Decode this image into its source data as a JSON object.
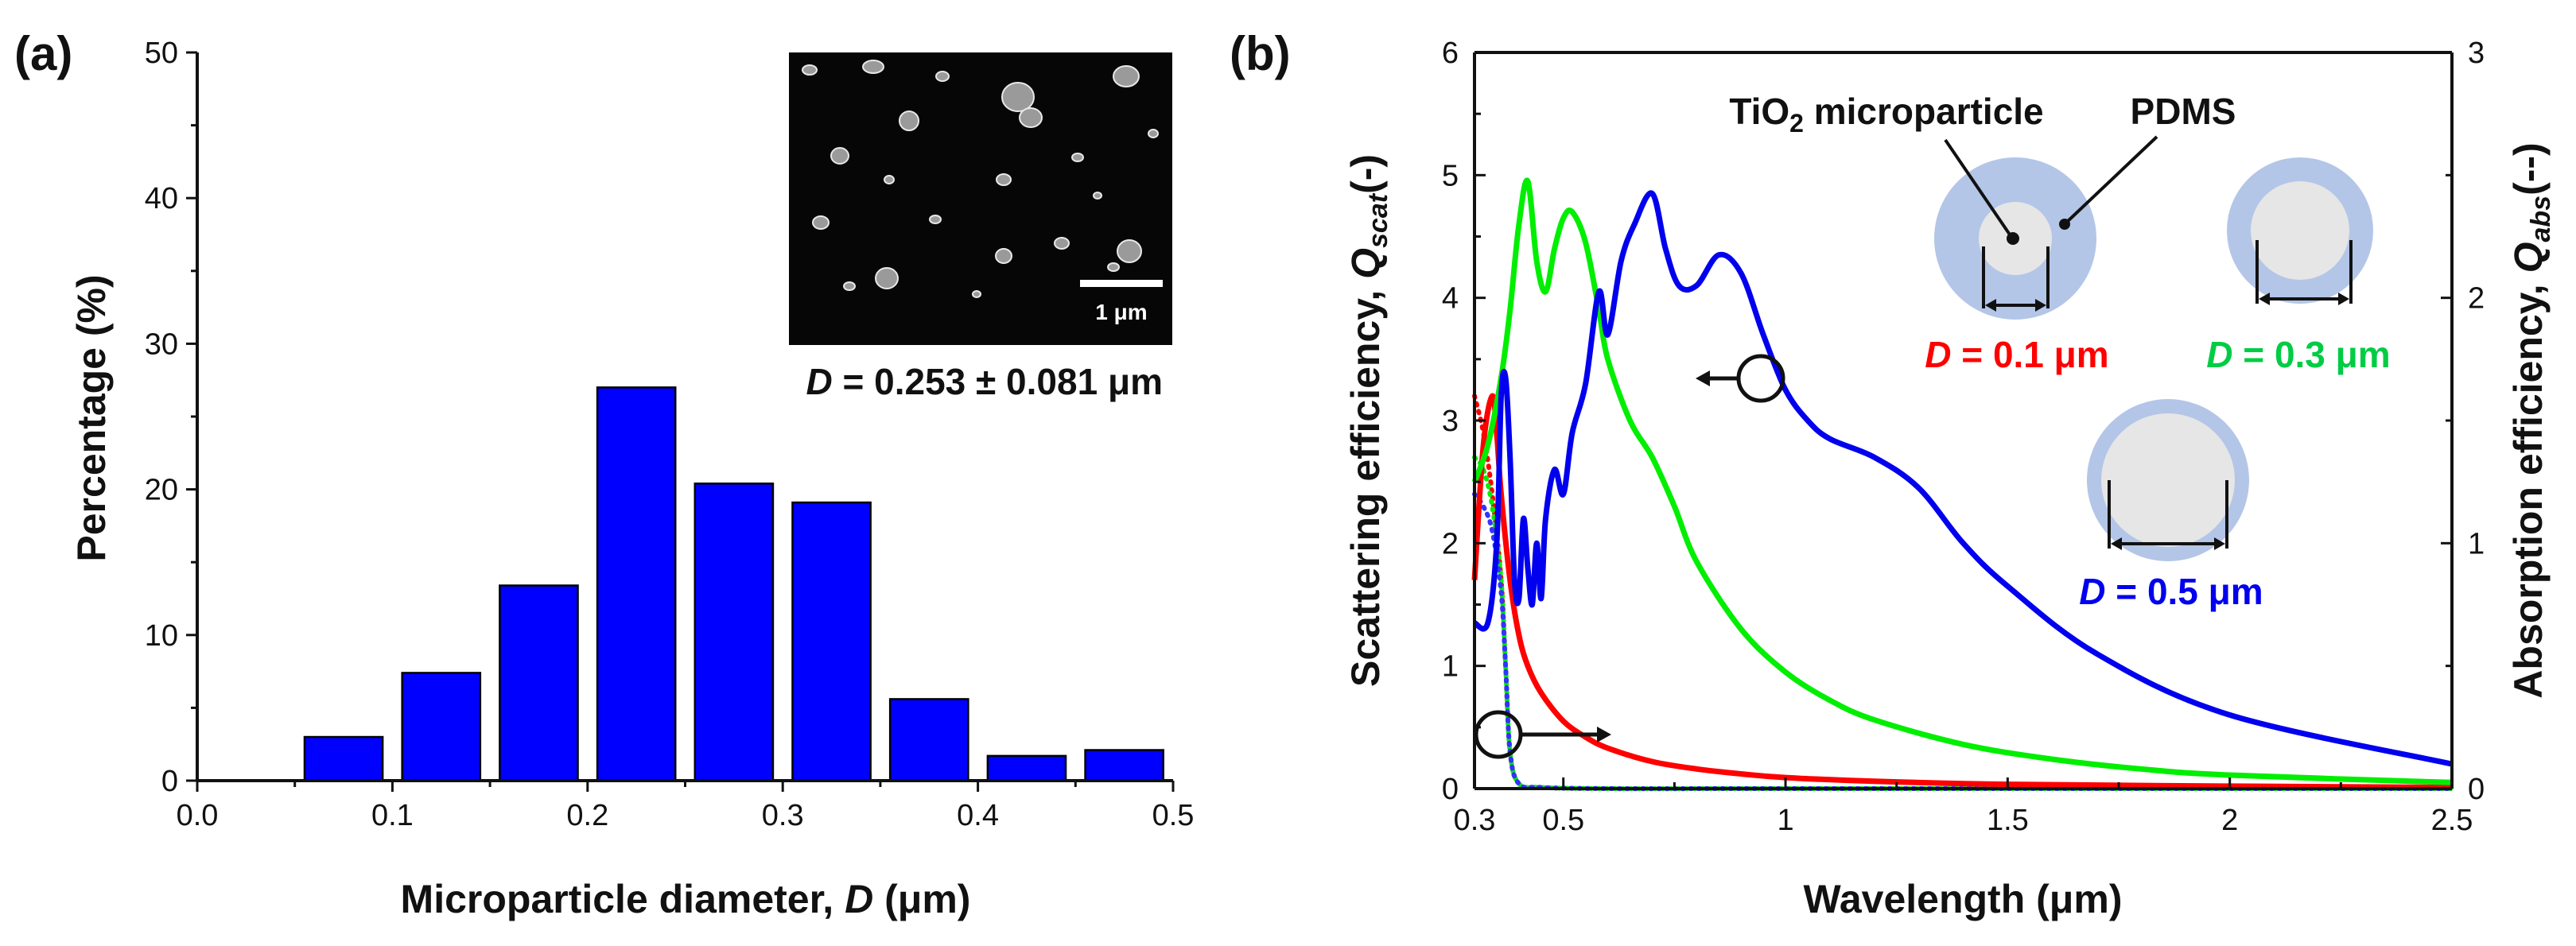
{
  "chart_data": [
    {
      "type": "bar",
      "panel_label": "(a)",
      "title": "",
      "xlabel": "Microparticle diameter, D (μm)",
      "xlabel_parts": {
        "prefix": "Microparticle diameter, ",
        "var": "D",
        "suffix": " (μm)"
      },
      "ylabel": "Percentage (%)",
      "xlim": [
        0.0,
        0.5
      ],
      "ylim": [
        0,
        50
      ],
      "xticks": [
        "0.0",
        "0.1",
        "0.2",
        "0.3",
        "0.4",
        "0.5"
      ],
      "yticks": [
        "0",
        "10",
        "20",
        "30",
        "40",
        "50"
      ],
      "bar_color": "#0000ff",
      "bins": [
        {
          "center": 0.075,
          "width": 0.04,
          "value": 3.0
        },
        {
          "center": 0.125,
          "width": 0.04,
          "value": 7.4
        },
        {
          "center": 0.175,
          "width": 0.04,
          "value": 13.4
        },
        {
          "center": 0.225,
          "width": 0.04,
          "value": 27.0
        },
        {
          "center": 0.275,
          "width": 0.04,
          "value": 20.4
        },
        {
          "center": 0.325,
          "width": 0.04,
          "value": 19.1
        },
        {
          "center": 0.375,
          "width": 0.04,
          "value": 5.6
        },
        {
          "center": 0.425,
          "width": 0.04,
          "value": 1.7
        },
        {
          "center": 0.475,
          "width": 0.04,
          "value": 2.1
        }
      ],
      "annotation": {
        "var": "D",
        "text": " = 0.253 ± 0.081 μm"
      },
      "inset": {
        "scale_bar_label": "1 μm"
      }
    },
    {
      "type": "line",
      "panel_label": "(b)",
      "title": "",
      "xlabel": "Wavelength (μm)",
      "ylabel_left": {
        "prefix": "Scattering efficiency, ",
        "var": "Q",
        "sub": "scat",
        "suffix": "(-)"
      },
      "ylabel_right": {
        "prefix": "Absorption efficiency, ",
        "var": "Q",
        "sub": "abs",
        "suffix": "(--)"
      },
      "xlim": [
        0.3,
        2.5
      ],
      "ylim_left": [
        0,
        6
      ],
      "ylim_right": [
        0,
        3
      ],
      "xticks": [
        "0.3",
        "0.5",
        "1",
        "1.5",
        "2",
        "2.5"
      ],
      "xtick_values": [
        0.3,
        0.5,
        1.0,
        1.5,
        2.0,
        2.5
      ],
      "yticks_left": [
        "0",
        "1",
        "2",
        "3",
        "4",
        "5",
        "6"
      ],
      "yticks_right": [
        "0",
        "1",
        "2",
        "3"
      ],
      "series": [
        {
          "name": "D = 0.1 μm scattering",
          "color": "#ff0000",
          "axis": "left",
          "style": "solid",
          "x": [
            0.3,
            0.32,
            0.34,
            0.35,
            0.36,
            0.38,
            0.4,
            0.42,
            0.45,
            0.5,
            0.55,
            0.6,
            0.7,
            0.8,
            0.9,
            1.0,
            1.2,
            1.5,
            2.0,
            2.5
          ],
          "y": [
            1.7,
            2.8,
            3.2,
            2.9,
            2.4,
            1.7,
            1.25,
            1.0,
            0.78,
            0.55,
            0.42,
            0.33,
            0.22,
            0.16,
            0.12,
            0.09,
            0.06,
            0.035,
            0.02,
            0.01
          ]
        },
        {
          "name": "D = 0.3 μm scattering",
          "color": "#00ee00",
          "axis": "left",
          "style": "solid",
          "x": [
            0.3,
            0.33,
            0.36,
            0.38,
            0.4,
            0.42,
            0.44,
            0.46,
            0.48,
            0.5,
            0.52,
            0.55,
            0.58,
            0.6,
            0.65,
            0.7,
            0.75,
            0.8,
            0.9,
            1.0,
            1.1,
            1.2,
            1.4,
            1.6,
            1.8,
            2.0,
            2.5
          ],
          "y": [
            2.5,
            2.8,
            3.35,
            3.9,
            4.6,
            4.95,
            4.3,
            4.05,
            4.4,
            4.65,
            4.7,
            4.45,
            3.9,
            3.5,
            3.0,
            2.7,
            2.3,
            1.85,
            1.3,
            0.95,
            0.72,
            0.56,
            0.36,
            0.24,
            0.16,
            0.11,
            0.05
          ]
        },
        {
          "name": "D = 0.5 μm scattering",
          "color": "#0000ee",
          "axis": "left",
          "style": "solid",
          "x": [
            0.3,
            0.33,
            0.35,
            0.36,
            0.37,
            0.38,
            0.39,
            0.4,
            0.41,
            0.42,
            0.43,
            0.44,
            0.45,
            0.46,
            0.48,
            0.5,
            0.52,
            0.55,
            0.58,
            0.6,
            0.63,
            0.66,
            0.7,
            0.73,
            0.76,
            0.8,
            0.85,
            0.9,
            0.95,
            1.0,
            1.05,
            1.1,
            1.2,
            1.3,
            1.4,
            1.5,
            1.7,
            2.0,
            2.5
          ],
          "y": [
            1.35,
            1.35,
            2.0,
            3.2,
            3.35,
            2.7,
            1.7,
            1.55,
            2.2,
            1.8,
            1.5,
            2.0,
            1.55,
            2.2,
            2.6,
            2.4,
            2.9,
            3.3,
            4.05,
            3.7,
            4.3,
            4.6,
            4.85,
            4.4,
            4.1,
            4.1,
            4.35,
            4.2,
            3.7,
            3.25,
            3.0,
            2.85,
            2.7,
            2.45,
            2.0,
            1.65,
            1.1,
            0.6,
            0.2
          ]
        },
        {
          "name": "D = 0.1 μm absorption",
          "color": "#ff0000",
          "axis": "right",
          "style": "dotted",
          "x": [
            0.3,
            0.32,
            0.34,
            0.36,
            0.37,
            0.38,
            0.4,
            0.45,
            0.6,
            1.0,
            2.5
          ],
          "y": [
            1.6,
            1.45,
            1.2,
            0.85,
            0.5,
            0.15,
            0.02,
            0.005,
            0.0,
            0.0,
            0.0
          ]
        },
        {
          "name": "D = 0.3 μm absorption",
          "color": "#00ee00",
          "axis": "right",
          "style": "dotted",
          "x": [
            0.3,
            0.32,
            0.34,
            0.36,
            0.37,
            0.38,
            0.4,
            0.45,
            0.6,
            1.0,
            2.5
          ],
          "y": [
            1.35,
            1.3,
            1.15,
            0.85,
            0.5,
            0.15,
            0.02,
            0.005,
            0.0,
            0.0,
            0.0
          ]
        },
        {
          "name": "D = 0.5 μm absorption",
          "color": "#3333ff",
          "axis": "right",
          "style": "dotted",
          "x": [
            0.3,
            0.32,
            0.34,
            0.36,
            0.37,
            0.38,
            0.4,
            0.45,
            0.6,
            1.0,
            2.5
          ],
          "y": [
            1.2,
            1.15,
            1.05,
            0.8,
            0.5,
            0.15,
            0.02,
            0.005,
            0.0,
            0.0,
            0.0
          ]
        }
      ],
      "annotations": {
        "tio2_label": {
          "main": "TiO",
          "sub": "2",
          "rest": " microparticle"
        },
        "pdms_label": "PDMS",
        "d01": {
          "var": "D",
          "text": " = 0.1 μm",
          "color": "#ff0000"
        },
        "d03": {
          "var": "D",
          "text": " = 0.3 μm",
          "color": "#00cc44"
        },
        "d05": {
          "var": "D",
          "text": " = 0.5 μm",
          "color": "#0000ee"
        },
        "pdms_color": "#b4c6e7",
        "particle_color": "#e6e6e6"
      }
    }
  ]
}
